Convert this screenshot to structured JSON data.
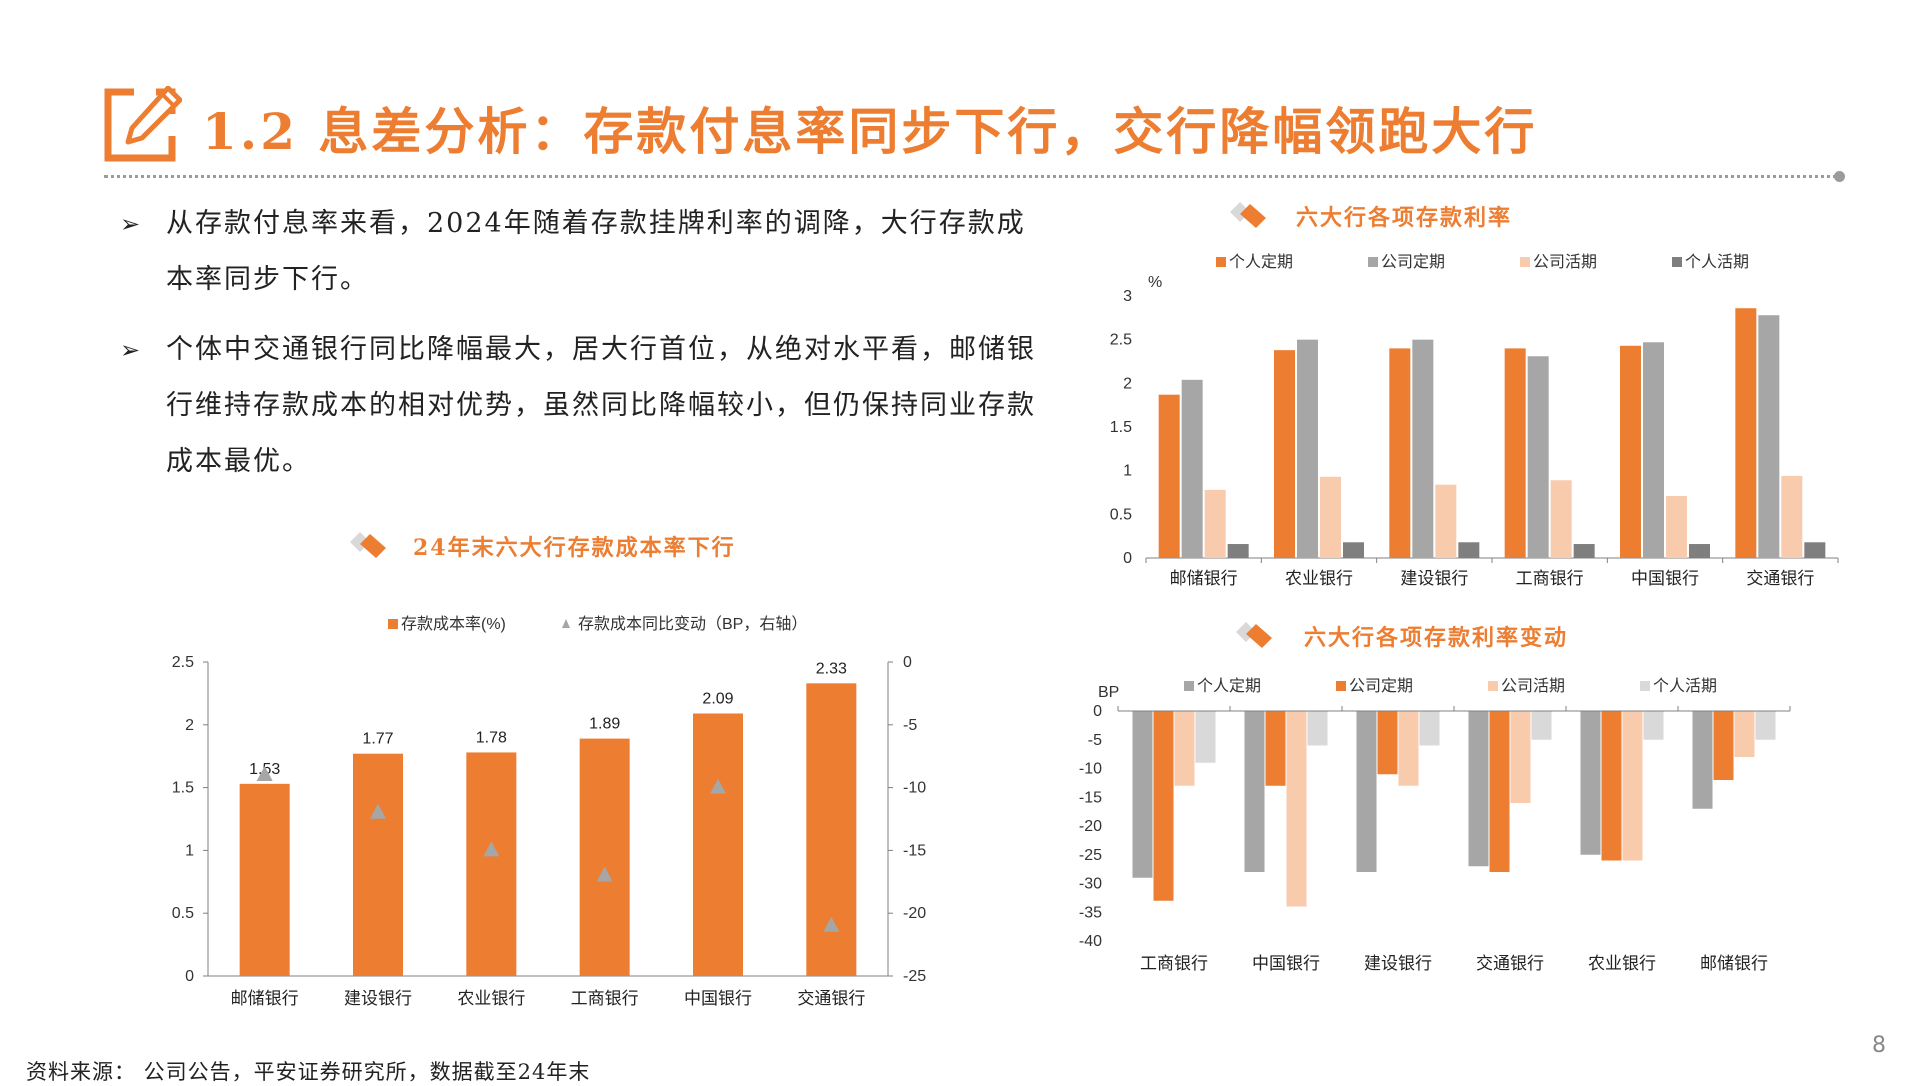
{
  "header": {
    "title": "1.2 息差分析：存款付息率同步下行，交行降幅领跑大行"
  },
  "bullets": [
    "从存款付息率来看，2024年随着存款挂牌利率的调降，大行存款成本率同步下行。",
    "个体中交通银行同比降幅最大，居大行首位，从绝对水平看，邮储银行维持存款成本的相对优势，虽然同比降幅较小，但仍保持同业存款成本最优。"
  ],
  "footer": {
    "source": "资料来源： 公司公告，平安证券研究所，数据截至24年末",
    "page_number": "8"
  },
  "colors": {
    "accent": "#ed7d31",
    "gray": "#a6a6a6",
    "light_orange": "#f8cbad",
    "dark_gray": "#7f7f7f",
    "light_gray": "#d9d9d9"
  },
  "chart_data": [
    {
      "id": "cost",
      "type": "bar",
      "title": "24年末六大行存款成本率下行",
      "categories": [
        "邮储银行",
        "建设银行",
        "农业银行",
        "工商银行",
        "中国银行",
        "交通银行"
      ],
      "series": [
        {
          "name": "存款成本率(%)",
          "type": "bar",
          "axis": "left",
          "color": "#ed7d31",
          "values": [
            1.53,
            1.77,
            1.78,
            1.89,
            2.09,
            2.33
          ],
          "labels": [
            "1.53",
            "1.77",
            "1.78",
            "1.89",
            "2.09",
            "2.33"
          ]
        },
        {
          "name": "存款成本同比变动（BP，右轴）",
          "type": "marker",
          "axis": "right",
          "color": "#a6a6a6",
          "values": [
            -9,
            -12,
            -15,
            -17,
            -10,
            -21
          ]
        }
      ],
      "ylim": [
        0,
        2.5
      ],
      "yticks": [
        "0",
        "0.5",
        "1",
        "1.5",
        "2",
        "2.5"
      ],
      "y2lim": [
        -25,
        0
      ],
      "y2ticks": [
        "0",
        "-5",
        "-10",
        "-15",
        "-20",
        "-25"
      ],
      "legend_position": "top"
    },
    {
      "id": "rates",
      "type": "bar",
      "title": "六大行各项存款利率",
      "ylabel": "%",
      "categories": [
        "邮储银行",
        "农业银行",
        "建设银行",
        "工商银行",
        "中国银行",
        "交通银行"
      ],
      "series": [
        {
          "name": "个人定期",
          "color": "#ed7d31",
          "values": [
            1.87,
            2.38,
            2.4,
            2.4,
            2.43,
            2.86
          ]
        },
        {
          "name": "公司定期",
          "color": "#a6a6a6",
          "values": [
            2.04,
            2.5,
            2.5,
            2.31,
            2.47,
            2.78
          ]
        },
        {
          "name": "公司活期",
          "color": "#f8cbad",
          "values": [
            0.78,
            0.93,
            0.84,
            0.89,
            0.71,
            0.94
          ]
        },
        {
          "name": "个人活期",
          "color": "#7f7f7f",
          "values": [
            0.16,
            0.18,
            0.18,
            0.16,
            0.16,
            0.18
          ]
        }
      ],
      "ylim": [
        0,
        3
      ],
      "yticks": [
        "0",
        "0.5",
        "1",
        "1.5",
        "2",
        "2.5",
        "3"
      ],
      "legend_position": "top"
    },
    {
      "id": "changes",
      "type": "bar",
      "title": "六大行各项存款利率变动",
      "ylabel": "BP",
      "categories": [
        "工商银行",
        "中国银行",
        "建设银行",
        "交通银行",
        "农业银行",
        "邮储银行"
      ],
      "series": [
        {
          "name": "个人定期",
          "color": "#a6a6a6",
          "values": [
            -29,
            -28,
            -28,
            -27,
            -25,
            -17
          ]
        },
        {
          "name": "公司定期",
          "color": "#ed7d31",
          "values": [
            -33,
            -13,
            -11,
            -28,
            -26,
            -12
          ]
        },
        {
          "name": "公司活期",
          "color": "#f8cbad",
          "values": [
            -13,
            -34,
            -13,
            -16,
            -26,
            -8
          ]
        },
        {
          "name": "个人活期",
          "color": "#d9d9d9",
          "values": [
            -9,
            -6,
            -6,
            -5,
            -5,
            -5
          ]
        }
      ],
      "ylim": [
        -40,
        0
      ],
      "yticks": [
        "0",
        "-5",
        "-10",
        "-15",
        "-20",
        "-25",
        "-30",
        "-35",
        "-40"
      ],
      "legend_position": "top"
    }
  ]
}
